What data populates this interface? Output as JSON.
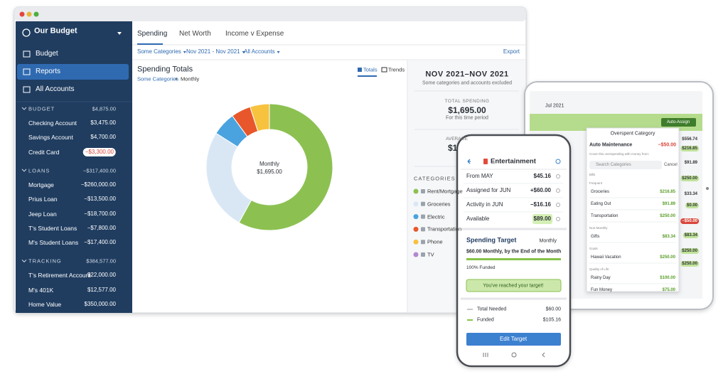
{
  "desktop": {
    "sidebar": {
      "budget_name": "Our Budget",
      "nav": [
        "Budget",
        "Reports",
        "All Accounts"
      ],
      "groups": [
        {
          "name": "BUDGET",
          "total": "$4,875.00",
          "accounts": [
            {
              "name": "Checking Account",
              "balance": "$3,475.00"
            },
            {
              "name": "Savings Account",
              "balance": "$4,700.00"
            },
            {
              "name": "Credit Card",
              "balance": "−$3,300.00"
            }
          ]
        },
        {
          "name": "LOANS",
          "total": "−$317,400.00",
          "accounts": [
            {
              "name": "Mortgage",
              "balance": "−$260,000.00"
            },
            {
              "name": "Prius Loan",
              "balance": "−$13,500.00"
            },
            {
              "name": "Jeep Loan",
              "balance": "−$18,700.00"
            },
            {
              "name": "T's Student Loans",
              "balance": "−$7,800.00"
            },
            {
              "name": "M's Student Loans",
              "balance": "−$17,400.00"
            }
          ]
        },
        {
          "name": "TRACKING",
          "total": "$384,577.00",
          "accounts": [
            {
              "name": "T's Retirement Account",
              "balance": "$22,000.00"
            },
            {
              "name": "M's 401K",
              "balance": "$12,577.00"
            },
            {
              "name": "Home Value",
              "balance": "$350,000.00"
            }
          ]
        }
      ]
    },
    "tabs": [
      "Spending",
      "Net Worth",
      "Income v Expense"
    ],
    "filters": [
      "Some Categories",
      "Nov 2021 - Nov 2021",
      "All Accounts"
    ],
    "export": "Export",
    "report": {
      "title": "Spending Totals",
      "breadcrumb": [
        "Some Categories",
        "Monthly"
      ],
      "toggles": [
        "Totals",
        "Trends"
      ],
      "center_label": "Monthly",
      "center_value": "$1,695.00"
    },
    "summary": {
      "range": "NOV 2021–NOV 2021",
      "note": "Some categories and accounts excluded",
      "total_label": "TOTAL SPENDING",
      "total": "$1,695.00",
      "total_note": "For this time period",
      "average_label": "AVERAGE",
      "average": "$1",
      "categories_label": "CATEGORIES"
    }
  },
  "chart_data": {
    "type": "pie",
    "categories": [
      "Rent/Mortgage",
      "Groceries",
      "Electric",
      "Transportation",
      "Phone",
      "TV"
    ],
    "values": [
      983,
      441,
      102,
      85,
      84,
      0
    ],
    "colors": [
      "#8cc152",
      "#d9e7f5",
      "#4aa3df",
      "#e8572b",
      "#f7c23e",
      "#b388cf"
    ]
  },
  "phone": {
    "title": "Entertainment",
    "rows": [
      {
        "label": "From MAY",
        "value": "$45.16"
      },
      {
        "label": "Assigned for JUN",
        "value": "+$60.00"
      },
      {
        "label": "Activity in JUN",
        "value": "−$16.16"
      },
      {
        "label": "Available",
        "value": "$89.00"
      }
    ],
    "target_title": "Spending Target",
    "target_period": "Monthly",
    "target_desc": "$60.00 Monthly, by the End of the Month",
    "funded_pct": "100% Funded",
    "reached": "You've reached your target!",
    "totals": [
      {
        "label": "Total Needed",
        "value": "$60.00"
      },
      {
        "label": "Funded",
        "value": "$105.16"
      }
    ],
    "button": "Edit Target"
  },
  "tablet": {
    "month": "Jul 2021",
    "auto_assign": "Auto-Assign",
    "balances": [
      "$556.74",
      "$216.85",
      "$91.89",
      "$250.00",
      "$33.34",
      "$0.00",
      "−$50.00",
      "$83.34",
      "$250.00",
      "$250.00"
    ],
    "popup": {
      "title": "Overspent Category",
      "category": "Auto Maintenance",
      "amount": "−$50.00",
      "hint": "Cover this overspending with money from:",
      "search": "Search Categories",
      "cancel": "Cancel",
      "rows": [
        {
          "section": "Bills"
        },
        {
          "section": "Frequent"
        },
        {
          "name": "Groceries",
          "amount": "$216.85"
        },
        {
          "name": "Eating Out",
          "amount": "$91.89"
        },
        {
          "name": "Transportation",
          "amount": "$250.00"
        },
        {
          "section": "Non-Monthly"
        },
        {
          "name": "Gifts",
          "amount": "$83.34"
        },
        {
          "section": "Goals"
        },
        {
          "name": "Hawaii Vacation",
          "amount": "$250.00"
        },
        {
          "section": "Quality of Life"
        },
        {
          "name": "Rainy Day",
          "amount": "$100.00"
        },
        {
          "name": "Fun Money",
          "amount": "$75.00"
        }
      ]
    }
  }
}
